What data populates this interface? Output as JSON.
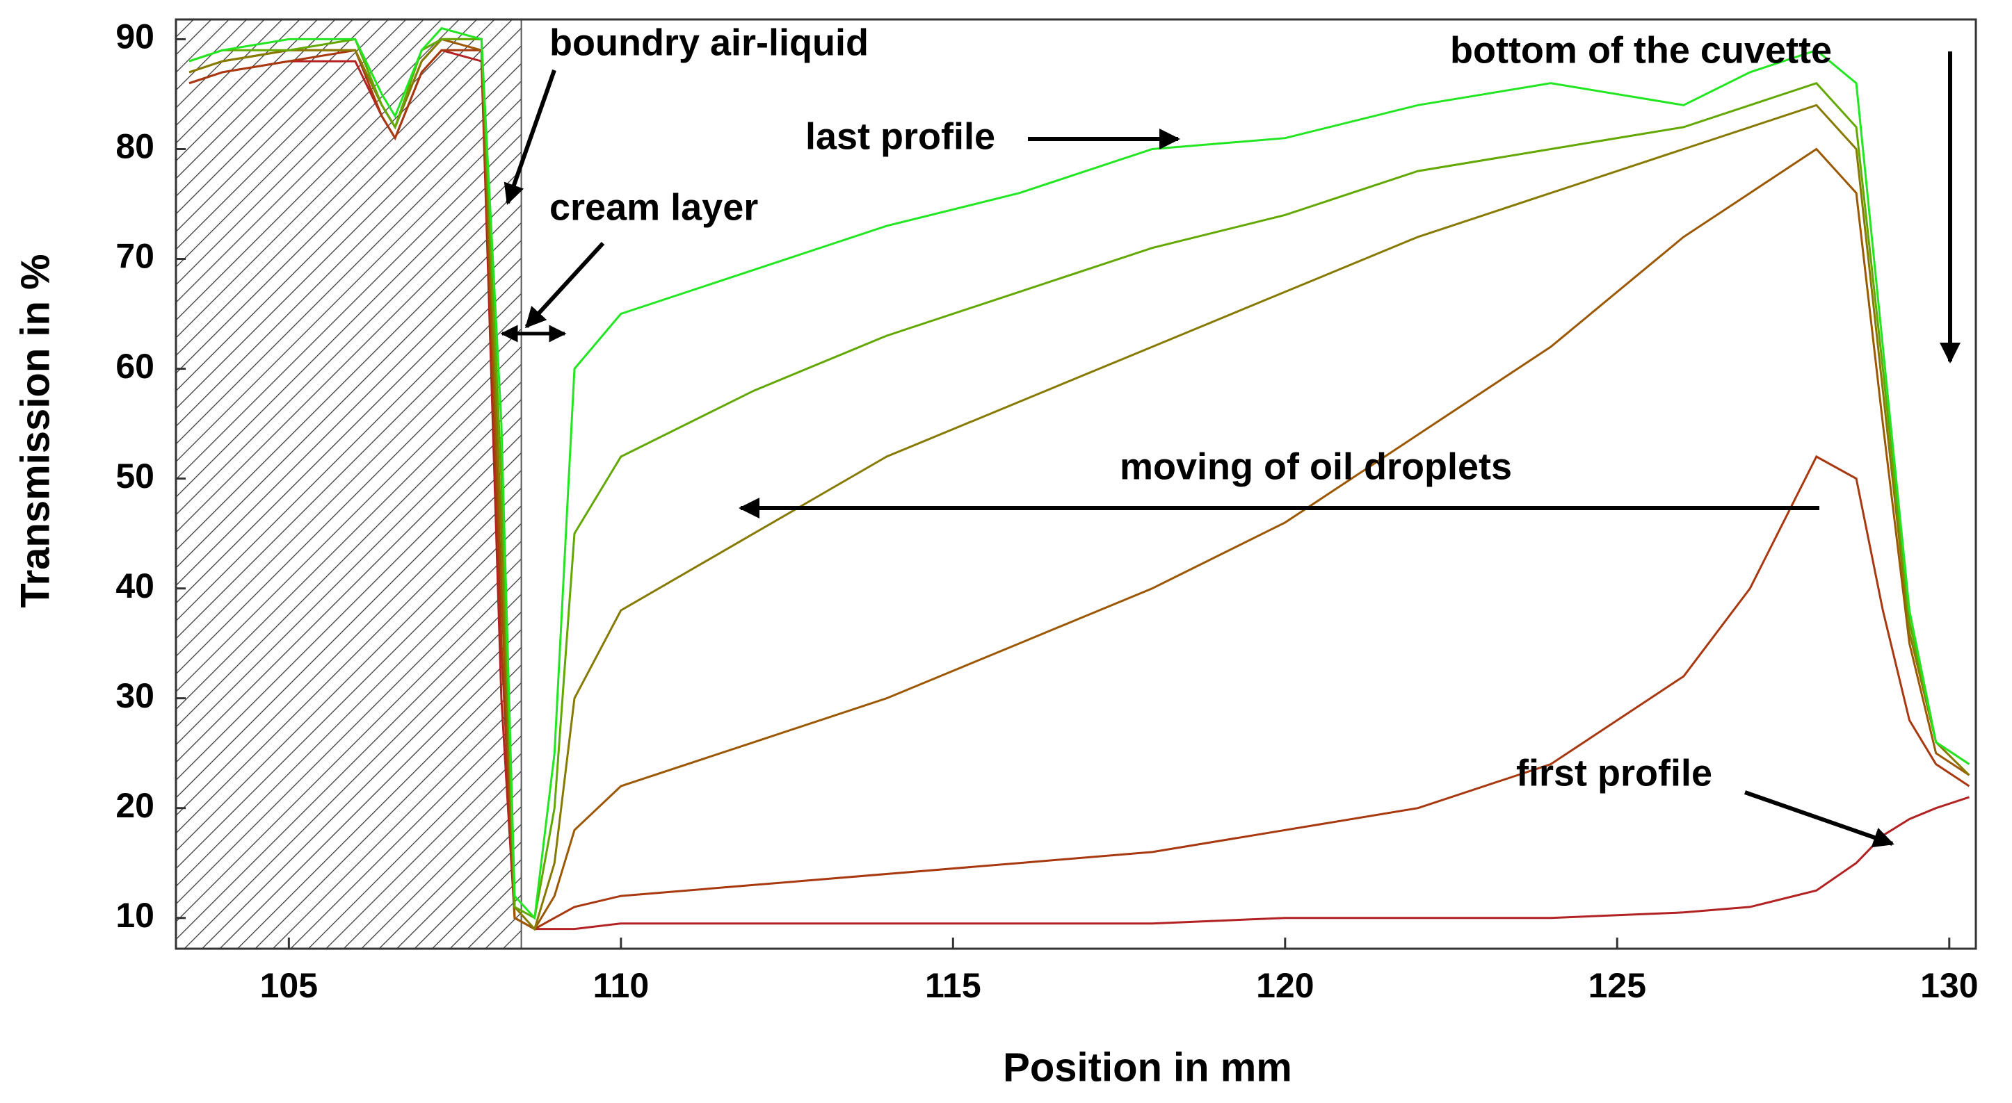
{
  "chart_data": {
    "type": "line",
    "xlabel": "Position in mm",
    "ylabel": "Transmission in %",
    "x": [
      103.5,
      104,
      105,
      106,
      106.4,
      106.6,
      107,
      107.3,
      107.9,
      108.2,
      108.4,
      108.7,
      109,
      109.3,
      110,
      112,
      114,
      116,
      118,
      120,
      122,
      124,
      126,
      127,
      128,
      128.6,
      129,
      129.4,
      129.8,
      130.3
    ],
    "series": [
      {
        "color": "#b22222",
        "values": [
          86,
          87,
          88,
          88,
          83,
          81,
          87,
          89,
          88,
          30,
          10,
          9,
          9,
          9,
          9.5,
          9.5,
          9.5,
          9.5,
          9.5,
          10,
          10,
          10,
          10.5,
          11,
          12.5,
          15,
          17.5,
          19,
          20,
          21
        ]
      },
      {
        "color": "#a8380f",
        "values": [
          86,
          87,
          88,
          89,
          83,
          81,
          87,
          89,
          89,
          35,
          10,
          9,
          10,
          11,
          12,
          13,
          14,
          15,
          16,
          18,
          20,
          24,
          32,
          40,
          52,
          50,
          38,
          28,
          24,
          22
        ]
      },
      {
        "color": "#9c5800",
        "values": [
          87,
          88,
          89,
          89,
          84,
          82,
          88,
          90,
          89,
          40,
          10,
          9,
          12,
          18,
          22,
          26,
          30,
          35,
          40,
          46,
          54,
          62,
          72,
          76,
          80,
          76,
          55,
          35,
          25,
          23
        ]
      },
      {
        "color": "#877a00",
        "values": [
          87,
          88,
          89,
          89,
          84,
          82,
          88,
          90,
          90,
          45,
          11,
          9,
          15,
          30,
          38,
          45,
          52,
          57,
          62,
          67,
          72,
          76,
          80,
          82,
          84,
          80,
          58,
          36,
          26,
          23
        ]
      },
      {
        "color": "#62a800",
        "values": [
          88,
          89,
          89,
          90,
          84,
          82,
          89,
          90,
          90,
          50,
          11,
          10,
          20,
          45,
          52,
          58,
          63,
          67,
          71,
          74,
          78,
          80,
          82,
          84,
          86,
          82,
          60,
          37,
          26,
          24
        ]
      },
      {
        "color": "#22e622",
        "values": [
          88,
          89,
          90,
          90,
          85,
          83,
          89,
          91,
          90,
          55,
          12,
          10,
          25,
          60,
          65,
          69,
          73,
          76,
          80,
          81,
          84,
          86,
          84,
          87,
          89,
          86,
          62,
          38,
          26,
          24
        ]
      }
    ],
    "xlim": [
      103.3,
      130.4
    ],
    "ylim": [
      7.2,
      91.8
    ],
    "xticks": [
      105,
      110,
      115,
      120,
      125,
      130
    ],
    "yticks": [
      10,
      20,
      30,
      40,
      50,
      60,
      70,
      80,
      90
    ],
    "hatched_xrange": [
      103.3,
      108.5
    ],
    "annotations": [
      "boundry air-liquid",
      "cream layer",
      "last profile",
      "bottom of the cuvette",
      "moving of oil droplets",
      "first profile"
    ]
  }
}
